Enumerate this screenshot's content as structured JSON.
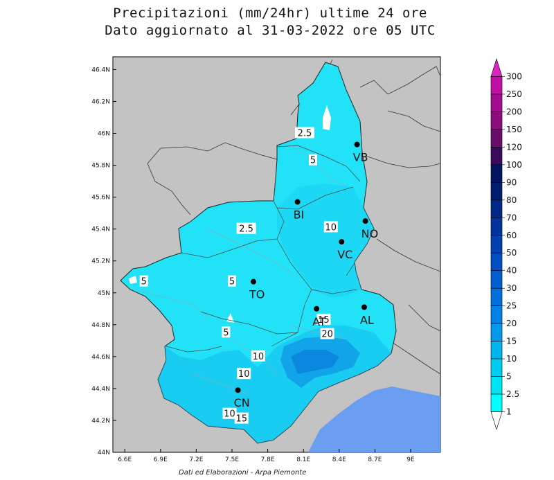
{
  "title_line1": "Precipitazioni (mm/24hr) ultime 24 ore",
  "title_line2": "Dato aggiornato al 31-03-2022 ore 05 UTC",
  "credit": "Dati ed Elaborazioni - Arpa Piemonte",
  "lat_ticks": [
    {
      "value": 46.4,
      "label": "46.4N"
    },
    {
      "value": 46.2,
      "label": "46.2N"
    },
    {
      "value": 46.0,
      "label": "46N"
    },
    {
      "value": 45.8,
      "label": "45.8N"
    },
    {
      "value": 45.6,
      "label": "45.6N"
    },
    {
      "value": 45.4,
      "label": "45.4N"
    },
    {
      "value": 45.2,
      "label": "45.2N"
    },
    {
      "value": 45.0,
      "label": "45N"
    },
    {
      "value": 44.8,
      "label": "44.8N"
    },
    {
      "value": 44.6,
      "label": "44.6N"
    },
    {
      "value": 44.4,
      "label": "44.4N"
    },
    {
      "value": 44.2,
      "label": "44.2N"
    },
    {
      "value": 44.0,
      "label": "44N"
    }
  ],
  "lon_ticks": [
    {
      "value": 6.6,
      "label": "6.6E"
    },
    {
      "value": 6.9,
      "label": "6.9E"
    },
    {
      "value": 7.2,
      "label": "7.2E"
    },
    {
      "value": 7.5,
      "label": "7.5E"
    },
    {
      "value": 7.8,
      "label": "7.8E"
    },
    {
      "value": 8.1,
      "label": "8.1E"
    },
    {
      "value": 8.4,
      "label": "8.4E"
    },
    {
      "value": 8.7,
      "label": "8.7E"
    },
    {
      "value": 9.0,
      "label": "9E"
    }
  ],
  "legend": {
    "levels": [
      "1",
      "2.5",
      "5",
      "10",
      "15",
      "20",
      "25",
      "30",
      "40",
      "50",
      "60",
      "70",
      "80",
      "90",
      "100",
      "120",
      "150",
      "200",
      "250",
      "300"
    ],
    "colors": [
      "#00ffff",
      "#00e5f5",
      "#00cdf0",
      "#00b4ee",
      "#0099ec",
      "#0082e6",
      "#0070dc",
      "#005fd0",
      "#004fc2",
      "#0040b0",
      "#00339c",
      "#002886",
      "#001e70",
      "#001460",
      "#3a0a5a",
      "#6a0c6a",
      "#8c0c7c",
      "#a40c90",
      "#c010a6",
      "#dd22c0"
    ]
  },
  "cities": [
    {
      "name": "VB",
      "lon": 8.55,
      "lat": 45.93
    },
    {
      "name": "BI",
      "lon": 8.05,
      "lat": 45.57
    },
    {
      "name": "NO",
      "lon": 8.62,
      "lat": 45.45
    },
    {
      "name": "VC",
      "lon": 8.42,
      "lat": 45.32
    },
    {
      "name": "TO",
      "lon": 7.68,
      "lat": 45.07
    },
    {
      "name": "AT",
      "lon": 8.21,
      "lat": 44.9
    },
    {
      "name": "AL",
      "lon": 8.61,
      "lat": 44.91
    },
    {
      "name": "CN",
      "lon": 7.55,
      "lat": 44.39
    }
  ],
  "contour_labels": [
    {
      "text": "2.5",
      "lon": 8.11,
      "lat": 46.0
    },
    {
      "text": "5",
      "lon": 8.18,
      "lat": 45.83
    },
    {
      "text": "2.5",
      "lon": 7.62,
      "lat": 45.4
    },
    {
      "text": "10",
      "lon": 8.33,
      "lat": 45.41
    },
    {
      "text": "5",
      "lon": 6.76,
      "lat": 45.07
    },
    {
      "text": "5",
      "lon": 7.5,
      "lat": 45.07
    },
    {
      "text": "15",
      "lon": 8.27,
      "lat": 44.83
    },
    {
      "text": "20",
      "lon": 8.3,
      "lat": 44.74
    },
    {
      "text": "5",
      "lon": 7.45,
      "lat": 44.75
    },
    {
      "text": "10",
      "lon": 7.72,
      "lat": 44.6
    },
    {
      "text": "10",
      "lon": 7.6,
      "lat": 44.49
    },
    {
      "text": "10",
      "lon": 7.48,
      "lat": 44.24
    },
    {
      "text": "15",
      "lon": 7.58,
      "lat": 44.21
    }
  ]
}
